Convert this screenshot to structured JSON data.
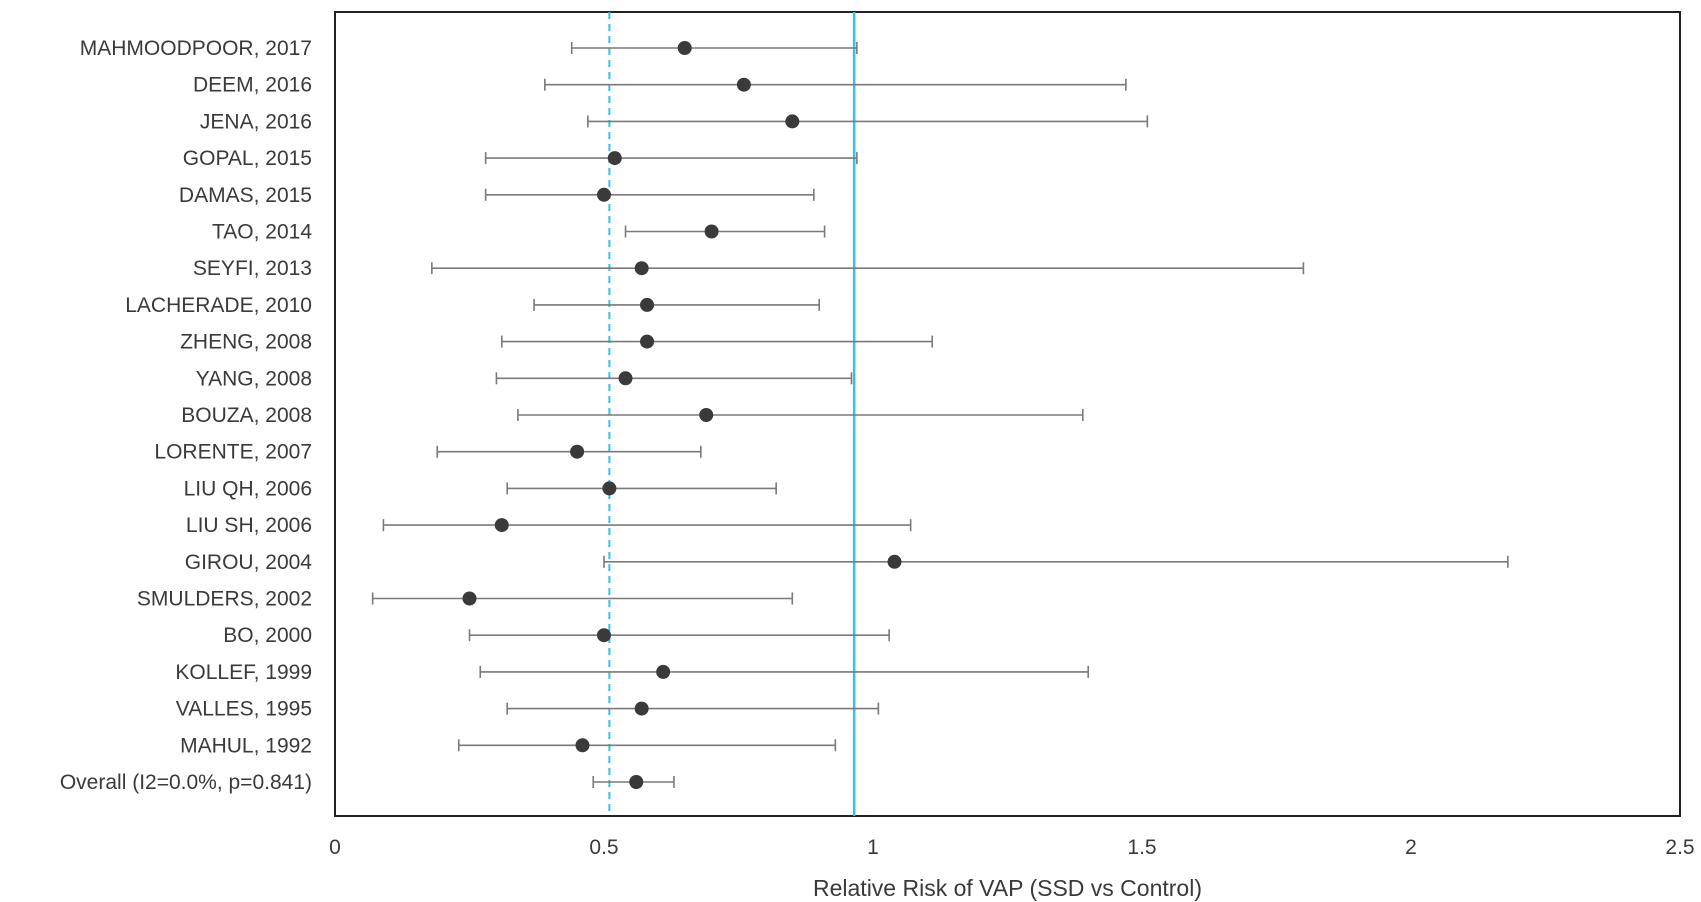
{
  "chart_data": {
    "type": "scatter",
    "subtype": "forest-plot",
    "title": "",
    "xlabel": "Relative Risk of VAP (SSD vs Control)",
    "ylabel": "",
    "xlim": [
      0,
      2.5
    ],
    "xticks": [
      0,
      0.5,
      1,
      1.5,
      2,
      2.5
    ],
    "xtick_labels": [
      "0",
      "0.5",
      "1",
      "1.5",
      "2",
      "2.5"
    ],
    "grid": false,
    "legend": "none",
    "colors": {
      "point": "#3a3a3a",
      "ci_line": "#7a7a7a",
      "null_line": "#33c1e8",
      "pooled_line": "#33c1e8",
      "frame": "#222222"
    },
    "reference_lines": {
      "null_effect": 0.965,
      "pooled_estimate": 0.51
    },
    "studies": [
      {
        "label": "MAHMOODPOOR, 2017",
        "rr": 0.65,
        "lower": 0.44,
        "upper": 0.97
      },
      {
        "label": "DEEM, 2016",
        "rr": 0.76,
        "lower": 0.39,
        "upper": 1.47
      },
      {
        "label": "JENA, 2016",
        "rr": 0.85,
        "lower": 0.47,
        "upper": 1.51
      },
      {
        "label": "GOPAL, 2015",
        "rr": 0.52,
        "lower": 0.28,
        "upper": 0.97
      },
      {
        "label": "DAMAS, 2015",
        "rr": 0.5,
        "lower": 0.28,
        "upper": 0.89
      },
      {
        "label": "TAO, 2014",
        "rr": 0.7,
        "lower": 0.54,
        "upper": 0.91
      },
      {
        "label": "SEYFI, 2013",
        "rr": 0.57,
        "lower": 0.18,
        "upper": 1.8
      },
      {
        "label": "LACHERADE, 2010",
        "rr": 0.58,
        "lower": 0.37,
        "upper": 0.9
      },
      {
        "label": "ZHENG, 2008",
        "rr": 0.58,
        "lower": 0.31,
        "upper": 1.11
      },
      {
        "label": "YANG, 2008",
        "rr": 0.54,
        "lower": 0.3,
        "upper": 0.96
      },
      {
        "label": "BOUZA, 2008",
        "rr": 0.69,
        "lower": 0.34,
        "upper": 1.39
      },
      {
        "label": "LORENTE, 2007",
        "rr": 0.45,
        "lower": 0.19,
        "upper": 0.68
      },
      {
        "label": "LIU QH, 2006",
        "rr": 0.51,
        "lower": 0.32,
        "upper": 0.82
      },
      {
        "label": "LIU SH, 2006",
        "rr": 0.31,
        "lower": 0.09,
        "upper": 1.07
      },
      {
        "label": "GIROU, 2004",
        "rr": 1.04,
        "lower": 0.5,
        "upper": 2.18
      },
      {
        "label": "SMULDERS, 2002",
        "rr": 0.25,
        "lower": 0.07,
        "upper": 0.85
      },
      {
        "label": "BO, 2000",
        "rr": 0.5,
        "lower": 0.25,
        "upper": 1.03
      },
      {
        "label": "KOLLEF, 1999",
        "rr": 0.61,
        "lower": 0.27,
        "upper": 1.4
      },
      {
        "label": "VALLES, 1995",
        "rr": 0.57,
        "lower": 0.32,
        "upper": 1.01
      },
      {
        "label": "MAHUL, 1992",
        "rr": 0.46,
        "lower": 0.23,
        "upper": 0.93
      },
      {
        "label": "Overall (I2=0.0%, p=0.841)",
        "rr": 0.56,
        "lower": 0.48,
        "upper": 0.63
      }
    ]
  }
}
